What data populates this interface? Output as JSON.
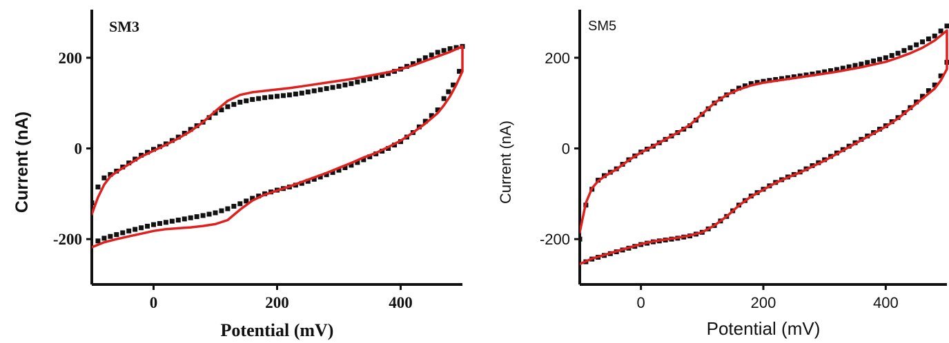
{
  "chart_data": [
    {
      "type": "line",
      "title": "SM3",
      "xlabel": "Potential (mV)",
      "ylabel": "Current (nA)",
      "xlim": [
        -100,
        500
      ],
      "ylim": [
        -300,
        300
      ],
      "xticks": [
        0,
        200,
        400
      ],
      "yticks": [
        -200,
        0,
        200
      ],
      "xtick_labels": [
        "0",
        "200",
        "400"
      ],
      "ytick_labels": [
        "-200",
        "0",
        "200"
      ],
      "grid": false,
      "style": "serif",
      "series": [
        {
          "marker": "square",
          "color": "#111111",
          "values": [
            [
              -100,
              -120
            ],
            [
              -90,
              -85
            ],
            [
              -80,
              -65
            ],
            [
              -60,
              -50
            ],
            [
              -40,
              -32
            ],
            [
              -20,
              -15
            ],
            [
              0,
              -2
            ],
            [
              20,
              10
            ],
            [
              40,
              25
            ],
            [
              60,
              42
            ],
            [
              80,
              58
            ],
            [
              100,
              78
            ],
            [
              120,
              92
            ],
            [
              140,
              102
            ],
            [
              160,
              108
            ],
            [
              180,
              112
            ],
            [
              200,
              115
            ],
            [
              220,
              118
            ],
            [
              240,
              122
            ],
            [
              260,
              127
            ],
            [
              280,
              132
            ],
            [
              300,
              137
            ],
            [
              320,
              143
            ],
            [
              340,
              150
            ],
            [
              360,
              157
            ],
            [
              380,
              165
            ],
            [
              400,
              175
            ],
            [
              420,
              187
            ],
            [
              440,
              200
            ],
            [
              460,
              212
            ],
            [
              480,
              220
            ],
            [
              500,
              225
            ],
            [
              495,
              170
            ],
            [
              485,
              140
            ],
            [
              470,
              110
            ],
            [
              460,
              85
            ],
            [
              440,
              60
            ],
            [
              420,
              35
            ],
            [
              400,
              15
            ],
            [
              380,
              0
            ],
            [
              360,
              -12
            ],
            [
              340,
              -25
            ],
            [
              320,
              -37
            ],
            [
              300,
              -48
            ],
            [
              280,
              -58
            ],
            [
              260,
              -68
            ],
            [
              240,
              -77
            ],
            [
              220,
              -85
            ],
            [
              200,
              -92
            ],
            [
              180,
              -100
            ],
            [
              160,
              -110
            ],
            [
              140,
              -122
            ],
            [
              120,
              -133
            ],
            [
              100,
              -142
            ],
            [
              80,
              -148
            ],
            [
              60,
              -153
            ],
            [
              40,
              -158
            ],
            [
              20,
              -163
            ],
            [
              0,
              -168
            ],
            [
              -20,
              -175
            ],
            [
              -40,
              -182
            ],
            [
              -60,
              -190
            ],
            [
              -80,
              -198
            ],
            [
              -100,
              -210
            ]
          ]
        },
        {
          "marker": "line",
          "color": "#e0201e",
          "values": [
            [
              -100,
              -145
            ],
            [
              -90,
              -108
            ],
            [
              -80,
              -80
            ],
            [
              -70,
              -62
            ],
            [
              -60,
              -52
            ],
            [
              -40,
              -35
            ],
            [
              -20,
              -18
            ],
            [
              0,
              -5
            ],
            [
              20,
              8
            ],
            [
              40,
              22
            ],
            [
              60,
              38
            ],
            [
              80,
              58
            ],
            [
              100,
              82
            ],
            [
              120,
              105
            ],
            [
              140,
              118
            ],
            [
              160,
              124
            ],
            [
              180,
              127
            ],
            [
              200,
              130
            ],
            [
              220,
              133
            ],
            [
              240,
              137
            ],
            [
              260,
              141
            ],
            [
              280,
              145
            ],
            [
              300,
              149
            ],
            [
              320,
              153
            ],
            [
              340,
              158
            ],
            [
              360,
              163
            ],
            [
              380,
              168
            ],
            [
              400,
              175
            ],
            [
              420,
              183
            ],
            [
              440,
              193
            ],
            [
              460,
              203
            ],
            [
              480,
              213
            ],
            [
              500,
              225
            ],
            [
              500,
              170
            ],
            [
              490,
              140
            ],
            [
              480,
              115
            ],
            [
              470,
              95
            ],
            [
              460,
              78
            ],
            [
              440,
              55
            ],
            [
              420,
              35
            ],
            [
              400,
              17
            ],
            [
              380,
              3
            ],
            [
              360,
              -10
            ],
            [
              340,
              -20
            ],
            [
              320,
              -32
            ],
            [
              300,
              -43
            ],
            [
              280,
              -54
            ],
            [
              260,
              -64
            ],
            [
              240,
              -74
            ],
            [
              220,
              -84
            ],
            [
              200,
              -93
            ],
            [
              180,
              -102
            ],
            [
              160,
              -115
            ],
            [
              140,
              -135
            ],
            [
              120,
              -158
            ],
            [
              100,
              -167
            ],
            [
              80,
              -171
            ],
            [
              60,
              -174
            ],
            [
              40,
              -176
            ],
            [
              20,
              -178
            ],
            [
              0,
              -182
            ],
            [
              -20,
              -188
            ],
            [
              -40,
              -194
            ],
            [
              -60,
              -200
            ],
            [
              -80,
              -207
            ],
            [
              -100,
              -218
            ]
          ]
        }
      ]
    },
    {
      "type": "line",
      "title": "SM5",
      "xlabel": "Potential (mV)",
      "ylabel": "Current (nA)",
      "xlim": [
        -100,
        500
      ],
      "ylim": [
        -300,
        300
      ],
      "xticks": [
        0,
        200,
        400
      ],
      "yticks": [
        -200,
        0,
        200
      ],
      "xtick_labels": [
        "0",
        "200",
        "400"
      ],
      "ytick_labels": [
        "-200",
        "0",
        "200"
      ],
      "grid": false,
      "style": "sans",
      "series": [
        {
          "marker": "square",
          "color": "#111111",
          "values": [
            [
              -100,
              -200
            ],
            [
              -90,
              -125
            ],
            [
              -80,
              -90
            ],
            [
              -70,
              -70
            ],
            [
              -60,
              -60
            ],
            [
              -40,
              -45
            ],
            [
              -20,
              -25
            ],
            [
              0,
              -8
            ],
            [
              20,
              5
            ],
            [
              40,
              20
            ],
            [
              60,
              35
            ],
            [
              80,
              50
            ],
            [
              100,
              75
            ],
            [
              120,
              100
            ],
            [
              140,
              118
            ],
            [
              160,
              133
            ],
            [
              180,
              143
            ],
            [
              200,
              148
            ],
            [
              220,
              152
            ],
            [
              240,
              156
            ],
            [
              260,
              160
            ],
            [
              280,
              164
            ],
            [
              300,
              169
            ],
            [
              320,
              174
            ],
            [
              340,
              180
            ],
            [
              360,
              186
            ],
            [
              380,
              193
            ],
            [
              400,
              200
            ],
            [
              420,
              210
            ],
            [
              440,
              222
            ],
            [
              460,
              235
            ],
            [
              480,
              248
            ],
            [
              500,
              270
            ],
            [
              500,
              190
            ],
            [
              490,
              160
            ],
            [
              480,
              140
            ],
            [
              460,
              115
            ],
            [
              440,
              90
            ],
            [
              420,
              68
            ],
            [
              400,
              50
            ],
            [
              380,
              35
            ],
            [
              360,
              20
            ],
            [
              340,
              5
            ],
            [
              320,
              -10
            ],
            [
              300,
              -25
            ],
            [
              280,
              -38
            ],
            [
              260,
              -52
            ],
            [
              240,
              -63
            ],
            [
              220,
              -75
            ],
            [
              200,
              -90
            ],
            [
              180,
              -105
            ],
            [
              160,
              -125
            ],
            [
              140,
              -150
            ],
            [
              120,
              -170
            ],
            [
              100,
              -185
            ],
            [
              80,
              -193
            ],
            [
              60,
              -198
            ],
            [
              40,
              -202
            ],
            [
              20,
              -206
            ],
            [
              0,
              -212
            ],
            [
              -20,
              -220
            ],
            [
              -40,
              -228
            ],
            [
              -60,
              -236
            ],
            [
              -80,
              -244
            ],
            [
              -100,
              -256
            ]
          ]
        },
        {
          "marker": "line",
          "color": "#e0201e",
          "values": [
            [
              -100,
              -185
            ],
            [
              -90,
              -120
            ],
            [
              -80,
              -88
            ],
            [
              -70,
              -72
            ],
            [
              -60,
              -62
            ],
            [
              -40,
              -46
            ],
            [
              -20,
              -26
            ],
            [
              0,
              -9
            ],
            [
              20,
              5
            ],
            [
              40,
              20
            ],
            [
              60,
              35
            ],
            [
              80,
              52
            ],
            [
              100,
              76
            ],
            [
              120,
              100
            ],
            [
              140,
              118
            ],
            [
              160,
              130
            ],
            [
              180,
              139
            ],
            [
              200,
              145
            ],
            [
              220,
              149
            ],
            [
              240,
              153
            ],
            [
              260,
              157
            ],
            [
              280,
              161
            ],
            [
              300,
              165
            ],
            [
              320,
              169
            ],
            [
              340,
              174
            ],
            [
              360,
              179
            ],
            [
              380,
              185
            ],
            [
              400,
              191
            ],
            [
              420,
              200
            ],
            [
              440,
              210
            ],
            [
              460,
              222
            ],
            [
              480,
              238
            ],
            [
              500,
              260
            ],
            [
              500,
              175
            ],
            [
              490,
              150
            ],
            [
              480,
              132
            ],
            [
              460,
              110
            ],
            [
              440,
              88
            ],
            [
              420,
              66
            ],
            [
              400,
              48
            ],
            [
              380,
              33
            ],
            [
              360,
              18
            ],
            [
              340,
              3
            ],
            [
              320,
              -12
            ],
            [
              300,
              -27
            ],
            [
              280,
              -40
            ],
            [
              260,
              -53
            ],
            [
              240,
              -64
            ],
            [
              220,
              -76
            ],
            [
              200,
              -91
            ],
            [
              180,
              -106
            ],
            [
              160,
              -126
            ],
            [
              140,
              -150
            ],
            [
              120,
              -170
            ],
            [
              100,
              -185
            ],
            [
              80,
              -192
            ],
            [
              60,
              -197
            ],
            [
              40,
              -201
            ],
            [
              20,
              -205
            ],
            [
              0,
              -211
            ],
            [
              -20,
              -219
            ],
            [
              -40,
              -227
            ],
            [
              -60,
              -235
            ],
            [
              -80,
              -243
            ],
            [
              -100,
              -255
            ]
          ]
        }
      ]
    }
  ]
}
